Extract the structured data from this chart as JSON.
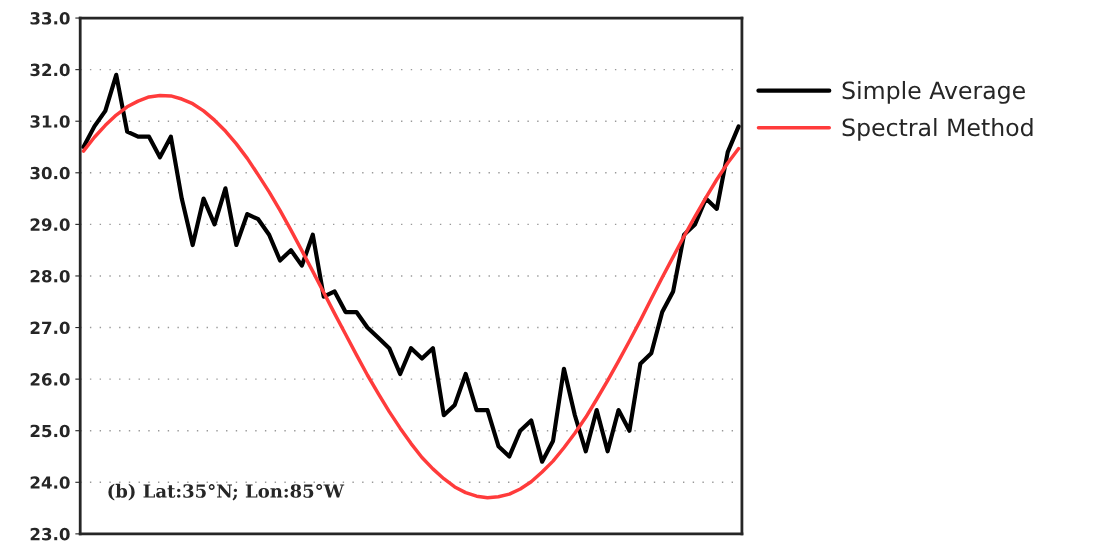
{
  "chart_data": {
    "type": "line",
    "categories": [
      null,
      null,
      null,
      null,
      null,
      null,
      null,
      null,
      null,
      null,
      null,
      null,
      null,
      null,
      null,
      null,
      null,
      null,
      null,
      null,
      null,
      null,
      null,
      null,
      null,
      null,
      null,
      null,
      null,
      null,
      null,
      null,
      null,
      null,
      null,
      null,
      null,
      null,
      null,
      null,
      null,
      null,
      null,
      null,
      null,
      null,
      null,
      null,
      null,
      null,
      null,
      null,
      null,
      null,
      null,
      null,
      null,
      null,
      null,
      null,
      null
    ],
    "series": [
      {
        "name": "Simple Average",
        "color": "#000000",
        "values": [
          30.5,
          30.9,
          31.2,
          31.9,
          30.8,
          30.7,
          30.7,
          30.3,
          30.7,
          29.5,
          28.6,
          29.5,
          29.0,
          29.7,
          28.6,
          29.2,
          29.1,
          28.8,
          28.3,
          28.5,
          28.2,
          28.8,
          27.6,
          27.7,
          27.3,
          27.3,
          27.0,
          26.8,
          26.6,
          26.1,
          26.6,
          26.4,
          26.6,
          25.3,
          25.5,
          26.1,
          25.4,
          25.4,
          24.7,
          24.5,
          25.0,
          25.2,
          24.4,
          24.8,
          26.2,
          25.3,
          24.6,
          25.4,
          24.6,
          25.4,
          25.0,
          26.3,
          26.5,
          27.3,
          27.7,
          28.8,
          29.0,
          29.5,
          29.3,
          30.4,
          30.9
        ]
      },
      {
        "name": "Spectral Method",
        "color": "#ff3b3b",
        "values": [
          30.42,
          30.69,
          30.92,
          31.12,
          31.28,
          31.39,
          31.47,
          31.5,
          31.49,
          31.43,
          31.34,
          31.2,
          31.02,
          30.81,
          30.56,
          30.28,
          29.96,
          29.63,
          29.27,
          28.89,
          28.49,
          28.09,
          27.68,
          27.27,
          26.87,
          26.47,
          26.08,
          25.72,
          25.37,
          25.05,
          24.75,
          24.48,
          24.26,
          24.07,
          23.91,
          23.8,
          23.73,
          23.7,
          23.72,
          23.77,
          23.87,
          24.01,
          24.2,
          24.41,
          24.67,
          24.95,
          25.26,
          25.61,
          25.97,
          26.35,
          26.74,
          27.14,
          27.56,
          27.97,
          28.37,
          28.77,
          29.15,
          29.52,
          29.87,
          30.19,
          30.47
        ]
      }
    ],
    "ylim": [
      23,
      33
    ],
    "yticks": [
      {
        "value": 23,
        "label": "23.0"
      },
      {
        "value": 24,
        "label": "24.0"
      },
      {
        "value": 25,
        "label": "25.0"
      },
      {
        "value": 26,
        "label": "26.0"
      },
      {
        "value": 27,
        "label": "27.0"
      },
      {
        "value": 28,
        "label": "28.0"
      },
      {
        "value": 29,
        "label": "29.0"
      },
      {
        "value": 30,
        "label": "30.0"
      },
      {
        "value": 31,
        "label": "31.0"
      },
      {
        "value": 32,
        "label": "32.0"
      },
      {
        "value": 33,
        "label": "33.0"
      }
    ],
    "tick_labels": "y",
    "grid": "y",
    "legend": "right",
    "marker": "none",
    "line_style": "solid",
    "annotations": [
      "(b) Lat:35°N; Lon:85°W"
    ]
  }
}
